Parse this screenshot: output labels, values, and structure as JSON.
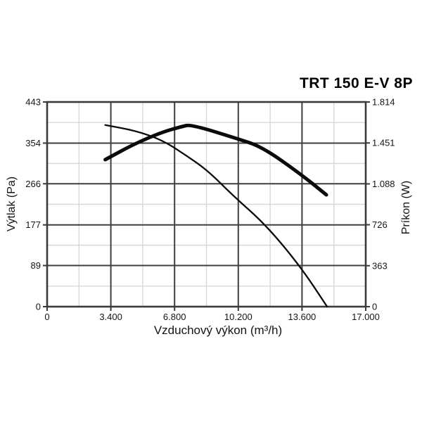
{
  "chart_data": {
    "type": "line",
    "title": "TRT 150 E-V 8P",
    "xlabel": "Vzduchový výkon (m³/h)",
    "ylabel_left": "Výtlak (Pa)",
    "ylabel_right": "Príkon (W)",
    "xlim": [
      0,
      17000
    ],
    "ylim_left": [
      0,
      443
    ],
    "ylim_right": [
      0,
      1814
    ],
    "x_tick_values": [
      0,
      3400,
      6800,
      10200,
      13600,
      17000
    ],
    "x_tick_labels": [
      "0",
      "3.400",
      "6.800",
      "10.200",
      "13.600",
      "17.000"
    ],
    "y_left_tick_values": [
      0,
      89,
      177,
      266,
      354,
      443
    ],
    "y_left_tick_labels": [
      "0",
      "89",
      "177",
      "266",
      "354",
      "443"
    ],
    "y_right_tick_values": [
      0,
      363,
      726,
      1088,
      1451,
      1814
    ],
    "y_right_tick_labels": [
      "0",
      "363",
      "726",
      "1.088",
      "1.451",
      "1.814"
    ],
    "grid": {
      "major": true,
      "minor": true,
      "minor_per_major": 1
    },
    "legend": "none",
    "series": [
      {
        "name": "vytlak-pressure-curve",
        "axis": "left",
        "unit": "Pa",
        "line_weight": "thin",
        "points": [
          [
            3100,
            393
          ],
          [
            4700,
            381
          ],
          [
            6120,
            361
          ],
          [
            7320,
            330
          ],
          [
            8560,
            295
          ],
          [
            9870,
            242
          ],
          [
            11670,
            177
          ],
          [
            13550,
            85
          ],
          [
            14940,
            0
          ]
        ]
      },
      {
        "name": "prikon-power-curve",
        "axis": "right",
        "unit": "W",
        "line_weight": "thick",
        "points": [
          [
            3100,
            1303
          ],
          [
            4620,
            1440
          ],
          [
            6120,
            1546
          ],
          [
            7170,
            1596
          ],
          [
            7690,
            1614
          ],
          [
            10130,
            1490
          ],
          [
            11480,
            1415
          ],
          [
            13550,
            1172
          ],
          [
            14900,
            991
          ]
        ]
      }
    ],
    "colors": {
      "curve": "#0b0b0b",
      "grid_major": "#3f3f3f",
      "grid_minor": "#d8d8d8",
      "axis": "#3a3a3a",
      "text": "#141414",
      "background": "#ffffff"
    }
  }
}
